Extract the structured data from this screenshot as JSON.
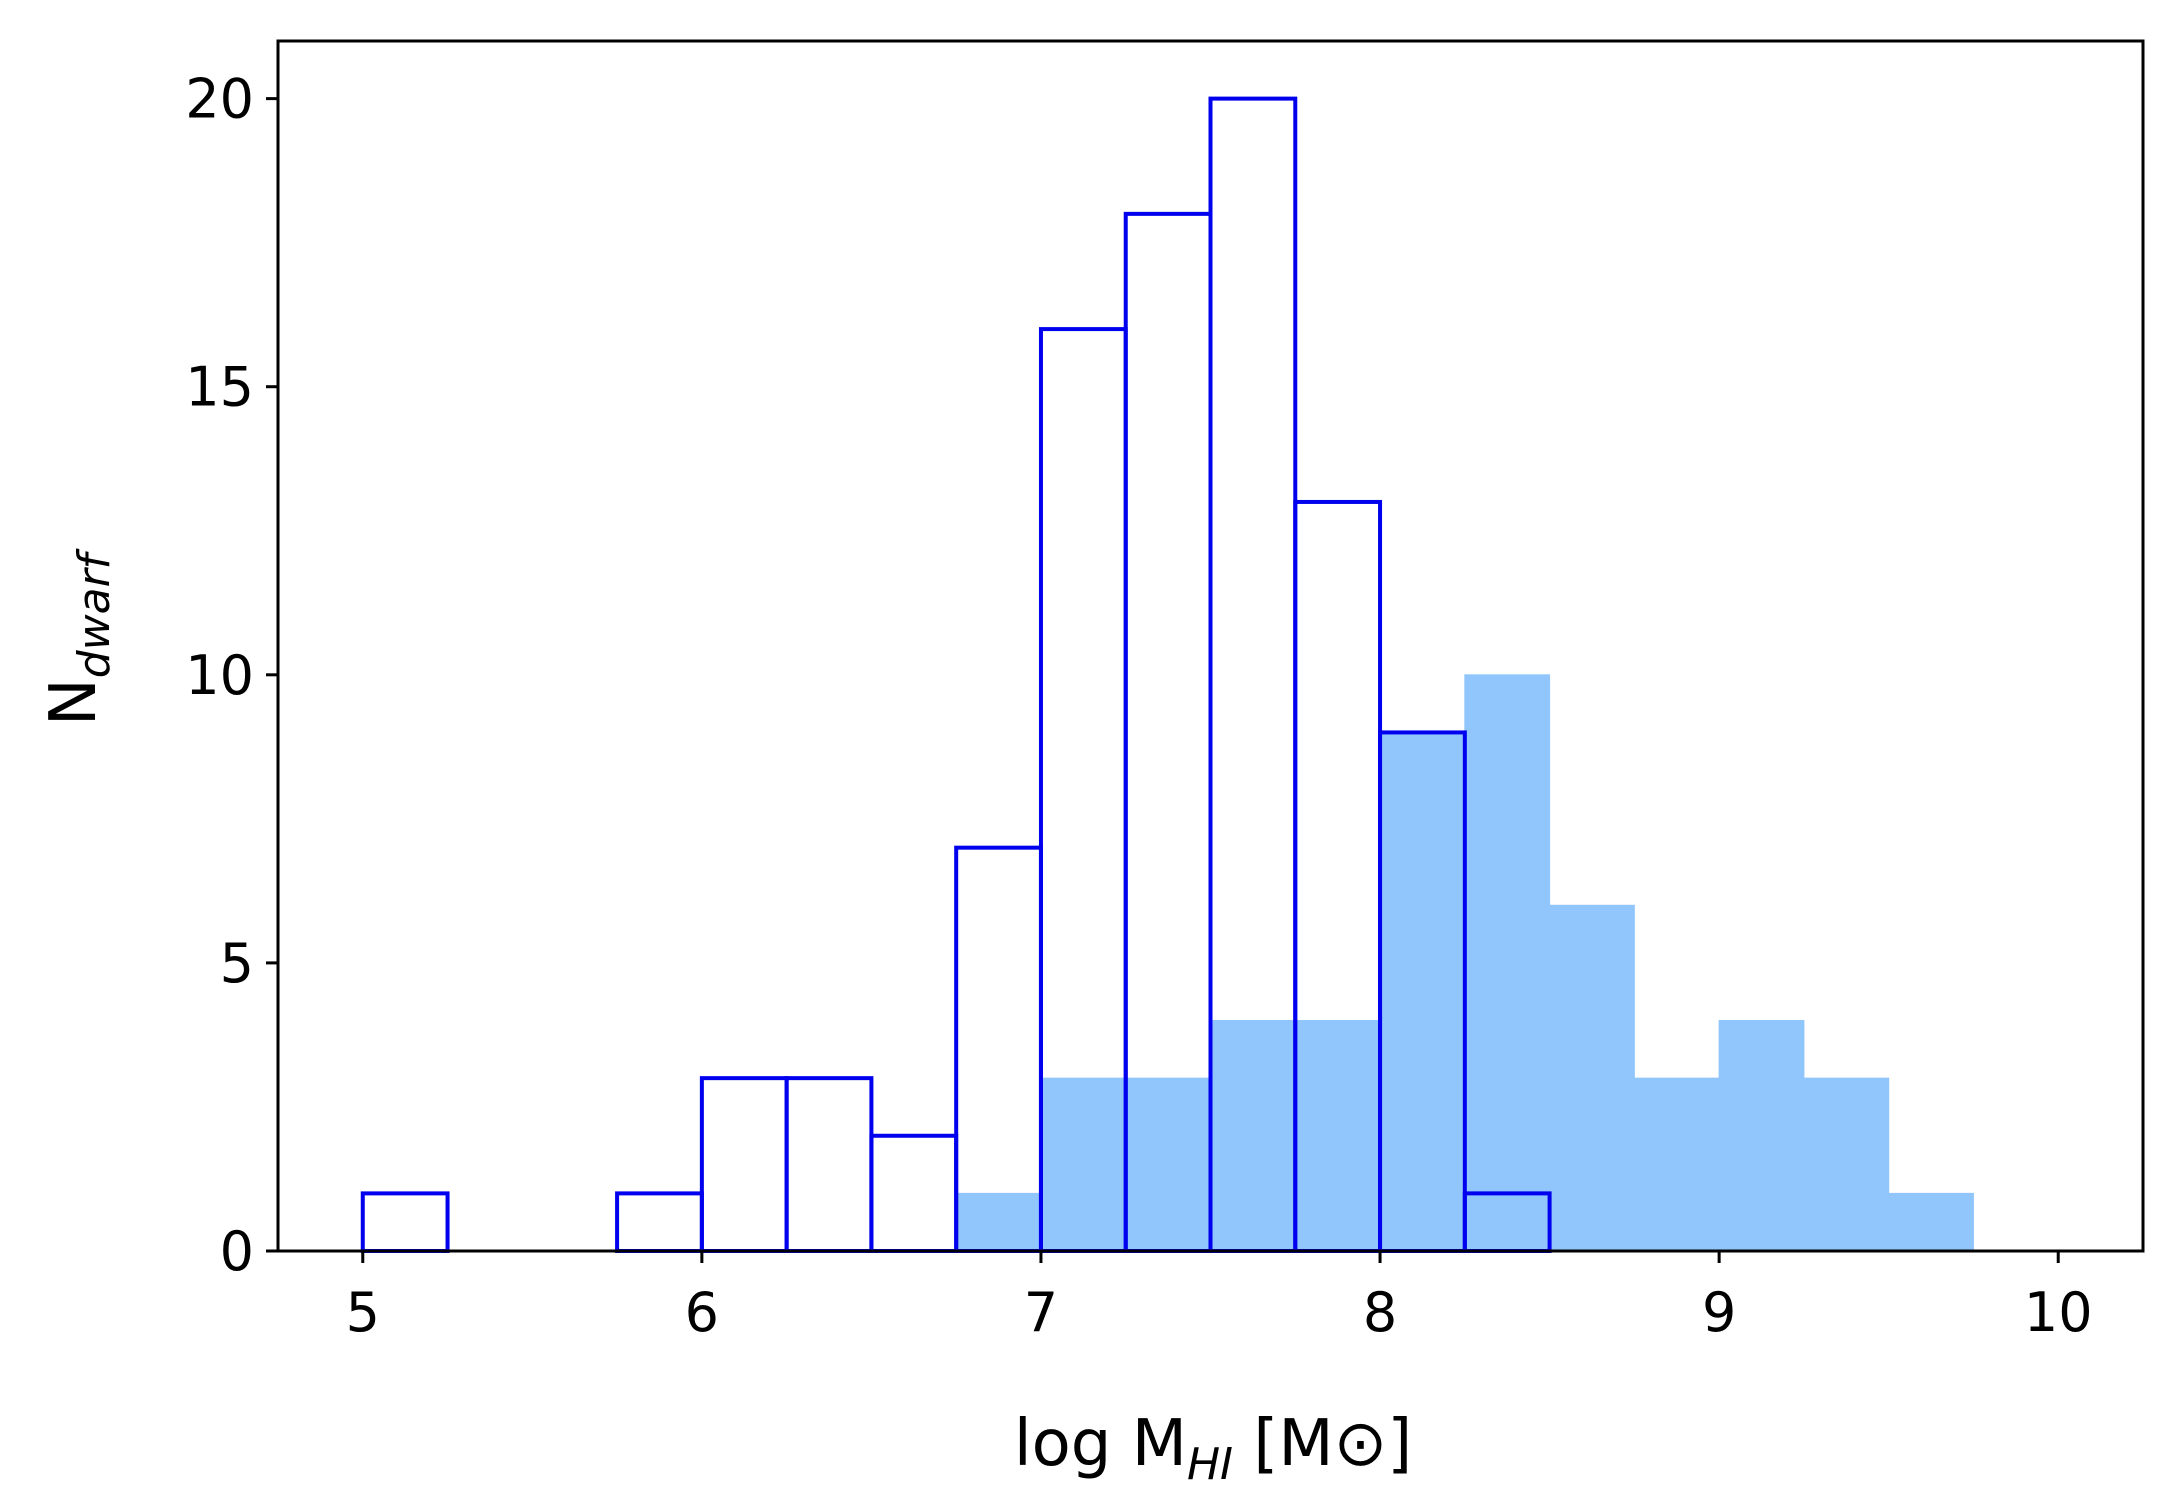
{
  "chart_data": {
    "type": "bar",
    "bin_edges": [
      5.0,
      5.25,
      5.5,
      5.75,
      6.0,
      6.25,
      6.5,
      6.75,
      7.0,
      7.25,
      7.5,
      7.75,
      8.0,
      8.25,
      8.5,
      8.75,
      9.0,
      9.25,
      9.5,
      9.75,
      10.0
    ],
    "series": [
      {
        "style": "step-outline",
        "color": "#0000ee",
        "values": [
          1,
          0,
          0,
          1,
          3,
          3,
          2,
          7,
          16,
          18,
          20,
          13,
          9,
          1,
          0,
          0,
          0,
          0,
          0,
          0
        ]
      },
      {
        "style": "filled",
        "color": "#90c6fb",
        "values": [
          0,
          0,
          0,
          0,
          0,
          0,
          0,
          1,
          3,
          3,
          4,
          4,
          9,
          10,
          6,
          3,
          4,
          3,
          1,
          0
        ]
      }
    ],
    "xlim": [
      4.75,
      10.25
    ],
    "ylim": [
      0,
      21
    ],
    "xticks": [
      "5",
      "6",
      "7",
      "8",
      "9",
      "10"
    ],
    "yticks": [
      "0",
      "5",
      "10",
      "15",
      "20"
    ],
    "xlabel": {
      "main": "log M",
      "sub": "HI",
      "tail": " [M⊙]"
    },
    "ylabel": {
      "main": "N",
      "sub": "dwarf"
    },
    "grid": false
  }
}
